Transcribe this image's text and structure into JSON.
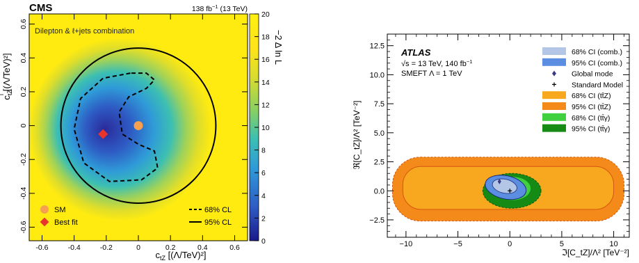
{
  "colors": {
    "cms_yellow": "#ffeb10",
    "cms_dark": "#2a2a9a",
    "sm_point": "#f7a050",
    "best_fit": "#e8342a",
    "atlas_comb_68": "#b3c6e6",
    "atlas_comb_95": "#5b8ee0",
    "atlas_ttz_68": "#f8a81e",
    "atlas_ttz_95": "#f48a1a",
    "atlas_tty_68": "#3fcf3f",
    "atlas_tty_95": "#158a15",
    "global_mode": "#3a3a8a"
  },
  "chart_data": [
    {
      "type": "heatmap",
      "experiment": "CMS",
      "lumi": "138 fb",
      "lumi_sup": "−1",
      "lumi_energy": " (13 TeV)",
      "annotation": "Dilepton & ℓ+jets combination",
      "xlabel": "c_tZ [(Λ/TeV)²]",
      "ylabel": "c^I_tZ [(Λ/TeV)²]",
      "colorbar_label": "−2 Δ ln L",
      "xlim": [
        -0.68,
        0.68
      ],
      "ylim": [
        -0.68,
        0.66
      ],
      "xticks": [
        "-0.6",
        "-0.4",
        "-0.2",
        "0",
        "0.2",
        "0.4",
        "0.6"
      ],
      "yticks": [
        "-0.6",
        "-0.4",
        "-0.2",
        "0",
        "0.2",
        "0.4",
        "0.6"
      ],
      "colorbar_ticks": [
        "0",
        "2",
        "4",
        "6",
        "8",
        "10",
        "12",
        "14",
        "16",
        "18",
        "20"
      ],
      "colorbar_range": [
        0,
        20
      ],
      "contour_95_radius": 0.47,
      "sm_point": {
        "x": 0.0,
        "y": 0.0,
        "label": "SM"
      },
      "best_fit": {
        "x": -0.22,
        "y": -0.05,
        "label": "Best fit"
      },
      "legend": {
        "l68": "68% CL",
        "l95": "95% CL"
      }
    },
    {
      "type": "area",
      "experiment": "ATLAS",
      "energy_label": "√s = 13 TeV, 140 fb",
      "energy_sup": "−1",
      "model_label": "SMEFT Λ = 1 TeV",
      "xlabel": "ℑ[C_tZ]/Λ² [TeV⁻²]",
      "ylabel": "ℜ[C_tZ]/Λ² [TeV⁻²]",
      "xlim": [
        -11.8,
        11.5
      ],
      "ylim": [
        -4.0,
        13.5
      ],
      "xticks": [
        "−10",
        "−5",
        "0",
        "5",
        "10"
      ],
      "yticks": [
        "−2.5",
        "0.0",
        "2.5",
        "5.0",
        "7.5",
        "10.0",
        "12.5"
      ],
      "global_mode": {
        "x": -1.0,
        "y": 0.8
      },
      "standard_model": {
        "x": 0.0,
        "y": 0.0
      },
      "regions": {
        "ttz_95": {
          "xmin": -11.3,
          "xmax": 11.0,
          "ymin": -2.6,
          "ymax": 2.9
        },
        "ttz_68": {
          "xmin": -10.3,
          "xmax": 10.0,
          "ymin": -1.6,
          "ymax": 2.1
        },
        "tty_95": {
          "cx": 0.2,
          "cy": 0.0,
          "rx": 2.8,
          "ry": 1.5
        },
        "tty_68": {
          "cx": 0.3,
          "cy": 0.2,
          "rx": 1.7,
          "ry": 1.0
        },
        "comb_95": {
          "cx": -0.4,
          "cy": 0.3,
          "rx": 2.0,
          "ry": 1.0
        },
        "comb_68": {
          "cx": -0.5,
          "cy": 0.4,
          "rx": 1.2,
          "ry": 0.6
        }
      },
      "legend": [
        {
          "label": "68% CI (comb.)",
          "kind": "atlas_comb_68"
        },
        {
          "label": "95% CI (comb.)",
          "kind": "atlas_comb_95"
        },
        {
          "label": "Global mode",
          "kind": "marker_mode"
        },
        {
          "label": "Standard Model",
          "kind": "marker_sm"
        },
        {
          "label": "68% CI (tt̄Z)",
          "kind": "atlas_ttz_68"
        },
        {
          "label": "95% CI (tt̄Z)",
          "kind": "atlas_ttz_95"
        },
        {
          "label": "68% CI (tt̄γ)",
          "kind": "atlas_tty_68"
        },
        {
          "label": "95% CI (tt̄γ)",
          "kind": "atlas_tty_95"
        }
      ]
    }
  ]
}
